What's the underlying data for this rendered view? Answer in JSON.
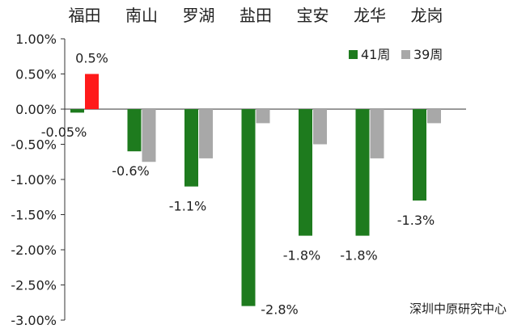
{
  "chart_data": {
    "type": "bar",
    "categories": [
      "福田",
      "南山",
      "罗湖",
      "盐田",
      "宝安",
      "龙华",
      "龙岗"
    ],
    "series": [
      {
        "name": "41周",
        "values": [
          -0.05,
          -0.6,
          -1.1,
          -2.8,
          -1.8,
          -1.8,
          -1.3
        ],
        "color": "#1e7b1e"
      },
      {
        "name": "39周",
        "values": [
          0.5,
          -0.75,
          -0.7,
          -0.2,
          -0.5,
          -0.7,
          -0.2
        ],
        "color": "#a8a8a8"
      }
    ],
    "highlight_color": "#ff1a1a",
    "data_labels": [
      "-0.05%",
      "-0.6%",
      "-1.1%",
      "-2.8%",
      "-1.8%",
      "-1.8%",
      "-1.3%"
    ],
    "highlight_label": "0.5%",
    "ylim": [
      -3.0,
      1.0
    ],
    "yticks": [
      "1.00%",
      "0.50%",
      "0.00%",
      "-0.50%",
      "-1.00%",
      "-1.50%",
      "-2.00%",
      "-2.50%",
      "-3.00%"
    ],
    "legend_position": "top-right",
    "source_note": "深圳中原研究中心",
    "grid": false
  }
}
